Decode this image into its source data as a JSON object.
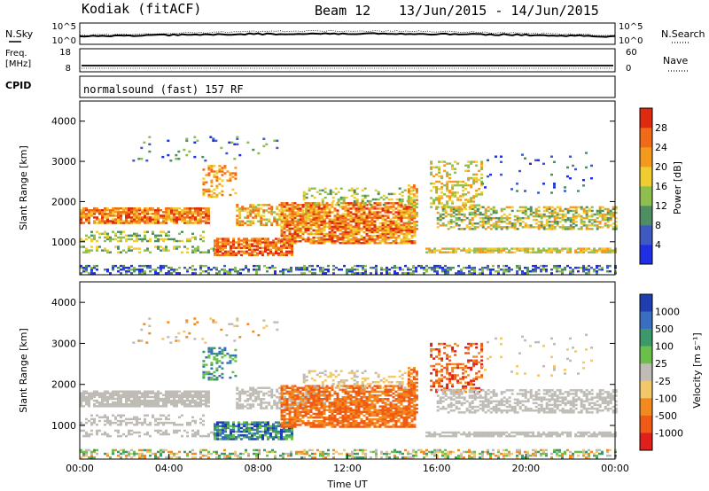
{
  "header": {
    "station": "Kodiak (fitACF)",
    "beam": "Beam 12",
    "date_range": "13/Jun/2015 - 14/Jun/2015"
  },
  "noise_panel": {
    "left_label": "N.Sky",
    "right_label": "N.Search",
    "left_ticks": [
      "10^5",
      "10^0"
    ],
    "right_ticks": [
      "10^5",
      "10^0"
    ],
    "right_legend_style": "dotted"
  },
  "freq_panel": {
    "left_label_line1": "Freq.",
    "left_label_line2": "[MHz]",
    "left_ticks": [
      "18",
      "8"
    ],
    "right_label": "Nave",
    "right_ticks": [
      "60",
      "0"
    ],
    "right_legend_style": "dotted"
  },
  "cpid_panel": {
    "label": "CPID",
    "text": "normalsound (fast) 157 RF"
  },
  "colors": {
    "power": [
      "#1f2fe6",
      "#3f59c2",
      "#4e8e62",
      "#8dbe4e",
      "#f0cc30",
      "#f39a1e",
      "#f06a18",
      "#e02a10"
    ],
    "velocity": [
      "#1f3fb0",
      "#3a6ec0",
      "#3c9a6a",
      "#6ac04a",
      "#bebcb4",
      "#f2c86a",
      "#f28a20",
      "#f05a14",
      "#e0201a"
    ]
  },
  "chart_data": [
    {
      "type": "heatmap",
      "name": "power",
      "ylabel": "Slant Range [km]",
      "xlabel": "",
      "ylim": [
        180,
        4500
      ],
      "y_ticks": [
        1000,
        2000,
        3000,
        4000
      ],
      "colorbar": {
        "label": "Power [dB]",
        "min": 0,
        "max": 32,
        "ticks": [
          4,
          8,
          12,
          16,
          20,
          24,
          28
        ]
      },
      "grid": false
    },
    {
      "type": "heatmap",
      "name": "velocity",
      "ylabel": "Slant Range [km]",
      "xlabel": "Time UT",
      "ylim": [
        180,
        4500
      ],
      "y_ticks": [
        1000,
        2000,
        3000,
        4000
      ],
      "x_ticks": [
        "00:00",
        "04:00",
        "08:00",
        "12:00",
        "16:00",
        "20:00",
        "00:00"
      ],
      "x_range_hours": [
        0,
        24
      ],
      "colorbar": {
        "label": "Velocity [m s⁻¹]",
        "ticks": [
          "1000",
          "500",
          "100",
          "25",
          "-25",
          "-100",
          "-500",
          "-1000"
        ]
      },
      "grid": false
    }
  ]
}
